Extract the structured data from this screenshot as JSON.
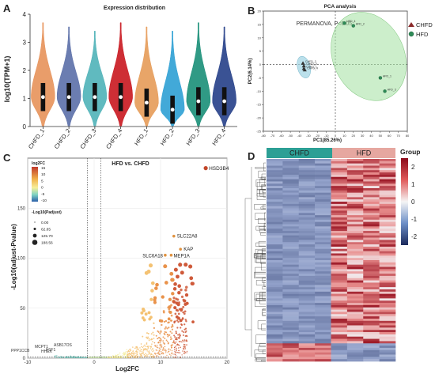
{
  "panels": {
    "A": "A",
    "B": "B",
    "C": "C",
    "D": "D"
  },
  "chart_data": [
    {
      "panel": "A",
      "type": "violin",
      "title": "Expression distribution",
      "ylabel": "log10(TPM+1)",
      "xlabel": "",
      "ylim": [
        0,
        4
      ],
      "yticks": [
        "0",
        "1",
        "2",
        "3",
        "4"
      ],
      "categories": [
        "CHFD_1",
        "CHFD_2",
        "CHFD_3",
        "CHFD_4",
        "HFD_1",
        "HFD_2",
        "HFD_3",
        "HFD_4"
      ],
      "medians": [
        1.05,
        1.05,
        1.05,
        1.05,
        0.85,
        0.6,
        0.9,
        0.9
      ],
      "colors": [
        "#e7925a",
        "#5b6fa8",
        "#4fb2b8",
        "#c9171f",
        "#e69b58",
        "#2ea0d4",
        "#1a8f78",
        "#253f88"
      ]
    },
    {
      "panel": "B",
      "type": "scatter",
      "title": "PCA analysis",
      "annotation": "PERMANOVA, P<0.05",
      "xlabel": "PC1(85.26%)",
      "ylabel": "PC2(6.14%)",
      "xlim": [
        -80,
        80
      ],
      "ylim": [
        -25,
        20
      ],
      "xticks": [
        -80,
        -70,
        -60,
        -50,
        -40,
        -30,
        -20,
        -10,
        0,
        10,
        20,
        30,
        40,
        50,
        60,
        70,
        80
      ],
      "yticks": [
        -25,
        -20,
        -15,
        -10,
        -5,
        0,
        5,
        10,
        15,
        20
      ],
      "legend": [
        {
          "name": "CHFD",
          "color": "#333333",
          "marker": "triangle"
        },
        {
          "name": "HFD",
          "color": "#2e8b57",
          "marker": "circle"
        }
      ],
      "points": [
        {
          "label": "CHFD_1",
          "x": -35,
          "y": -1.5,
          "group": "CHFD"
        },
        {
          "label": "CHFD_2",
          "x": -36,
          "y": 0.5,
          "group": "CHFD"
        },
        {
          "label": "CHFD_3",
          "x": -35,
          "y": -0.5,
          "group": "CHFD"
        },
        {
          "label": "CHFD_4",
          "x": -34,
          "y": -2.0,
          "group": "CHFD"
        },
        {
          "label": "HFD_4",
          "x": 10,
          "y": 15.5,
          "group": "HFD"
        },
        {
          "label": "HFD_2",
          "x": 20,
          "y": 14.5,
          "group": "HFD"
        },
        {
          "label": "HFD_1",
          "x": 50,
          "y": -5.0,
          "group": "HFD"
        },
        {
          "label": "HFD_3",
          "x": 55,
          "y": -10.0,
          "group": "HFD"
        }
      ]
    },
    {
      "panel": "C",
      "type": "scatter",
      "title": "HFD vs. CHFD",
      "xlabel": "Log2FC",
      "ylabel": "-Log10(adjust-Pvalue)",
      "xlim": [
        -10,
        20
      ],
      "ylim": [
        0,
        200
      ],
      "xticks": [
        -10,
        0,
        10,
        20
      ],
      "yticks": [
        0,
        50,
        100,
        150
      ],
      "colorbar_title": "log2FC",
      "colorbar_ticks": [
        "15",
        "10",
        "5",
        "0",
        "-5",
        "-10"
      ],
      "size_legend_title": "-Log10(Padjust)",
      "size_legend_values": [
        "0.00",
        "62.85",
        "125.70",
        "188.56"
      ],
      "thresholds": {
        "log2fc": [
          -1,
          1
        ],
        "p_line": 1.3
      },
      "labeled_points": [
        {
          "label": "HSD3B4",
          "x": 16.8,
          "y": 190
        },
        {
          "label": "SLC22A8",
          "x": 12,
          "y": 122
        },
        {
          "label": "KAP",
          "x": 13,
          "y": 109
        },
        {
          "label": "MEP1A",
          "x": 11.6,
          "y": 103
        },
        {
          "label": "SLC6A18",
          "x": 10.7,
          "y": 103
        },
        {
          "label": "PPP1CCB",
          "x": -7.8,
          "y": 2
        },
        {
          "label": "MCPT1",
          "x": -5.2,
          "y": 3
        },
        {
          "label": "HHEX",
          "x": -4.4,
          "y": 1
        },
        {
          "label": "HHEX",
          "x": -4.2,
          "y": 0.5
        },
        {
          "label": "ASB17OS",
          "x": -2.2,
          "y": 5
        }
      ],
      "left_point_labels": [
        "PPP1CCB",
        "MCPT1",
        "HHEX",
        "H1F1",
        "ASB17OS"
      ]
    },
    {
      "panel": "D",
      "type": "heatmap",
      "groups": [
        "CHFD",
        "HFD"
      ],
      "legend_title": "Group",
      "color_ticks": [
        "2",
        "1",
        "0",
        "-1",
        "-2"
      ],
      "group_colors": {
        "CHFD": "#2c9f95",
        "HFD": "#e6a7a0"
      }
    }
  ]
}
